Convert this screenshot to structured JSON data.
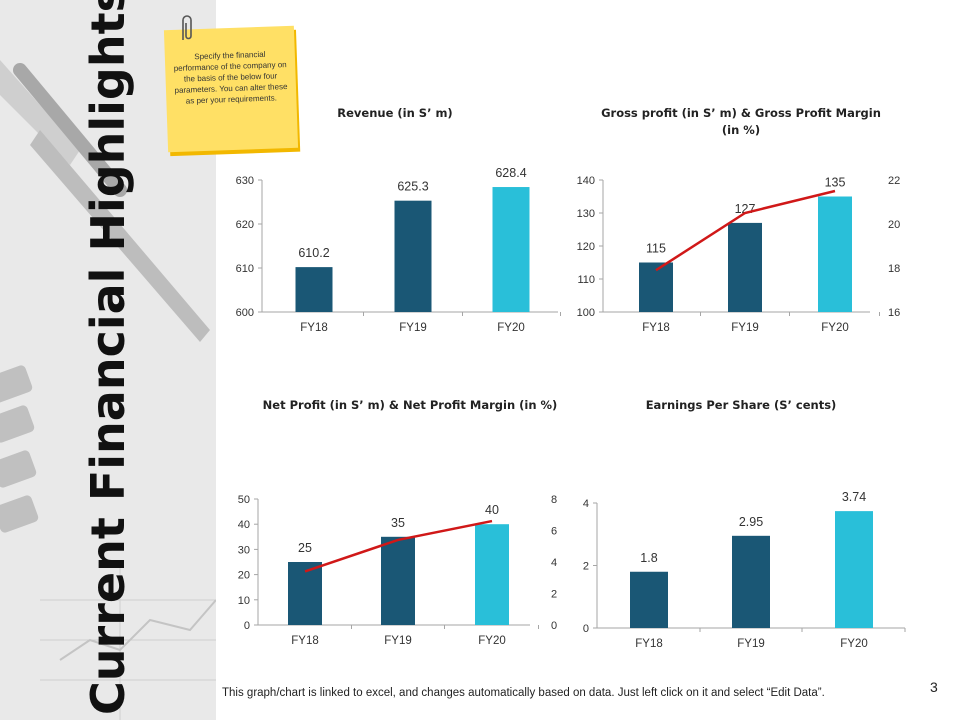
{
  "slide": {
    "title": "Current Financial Highlights",
    "note": "Specify the financial performance of the company on the basis of the below four parameters. You can alter these as per your requirements.",
    "footer": "This graph/chart is linked to excel, and changes automatically based on data. Just left click on it and select “Edit Data”.",
    "page_number": "3"
  },
  "colors": {
    "fy18": "#1a5775",
    "fy19": "#1a5775",
    "fy20": "#29bfd9",
    "line": "#d01818",
    "axis": "#a6a6a6"
  },
  "chart_data": [
    {
      "type": "bar",
      "title": "Revenue (in S’ m)",
      "categories": [
        "FY18",
        "FY19",
        "FY20"
      ],
      "values": [
        610.2,
        625.3,
        628.4
      ],
      "value_labels": [
        "610.2",
        "625.3",
        "628.4"
      ],
      "ylim": [
        600,
        630
      ],
      "yticks": [
        "600",
        "610",
        "620",
        "630"
      ]
    },
    {
      "type": "bar",
      "title": "Gross profit (in S’ m) & Gross Profit Margin (in %)",
      "categories": [
        "FY18",
        "FY19",
        "FY20"
      ],
      "values": [
        115,
        127,
        135
      ],
      "value_labels": [
        "115",
        "127",
        "135"
      ],
      "ylim": [
        100,
        140
      ],
      "yticks": [
        "100",
        "110",
        "120",
        "130",
        "140"
      ],
      "line_values": [
        17.9,
        20.5,
        21.5
      ],
      "y2lim": [
        16,
        22
      ],
      "y2ticks": [
        "16",
        "18",
        "20",
        "22"
      ]
    },
    {
      "type": "bar",
      "title": "Net Profit (in S’ m) & Net Profit Margin (in %)",
      "categories": [
        "FY18",
        "FY19",
        "FY20"
      ],
      "values": [
        25,
        35,
        40
      ],
      "value_labels": [
        "25",
        "35",
        "40"
      ],
      "ylim": [
        0,
        50
      ],
      "yticks": [
        "0",
        "10",
        "20",
        "30",
        "40",
        "50"
      ],
      "line_values": [
        3.4,
        5.4,
        6.6
      ],
      "y2lim": [
        0,
        8
      ],
      "y2ticks": [
        "0",
        "2",
        "4",
        "6",
        "8"
      ]
    },
    {
      "type": "bar",
      "title": "Earnings Per Share (S’ cents)",
      "categories": [
        "FY18",
        "FY19",
        "FY20"
      ],
      "values": [
        1.8,
        2.95,
        3.74
      ],
      "value_labels": [
        "1.8",
        "2.95",
        "3.74"
      ],
      "ylim": [
        0,
        4
      ],
      "yticks": [
        "0",
        "2",
        "4"
      ]
    }
  ]
}
